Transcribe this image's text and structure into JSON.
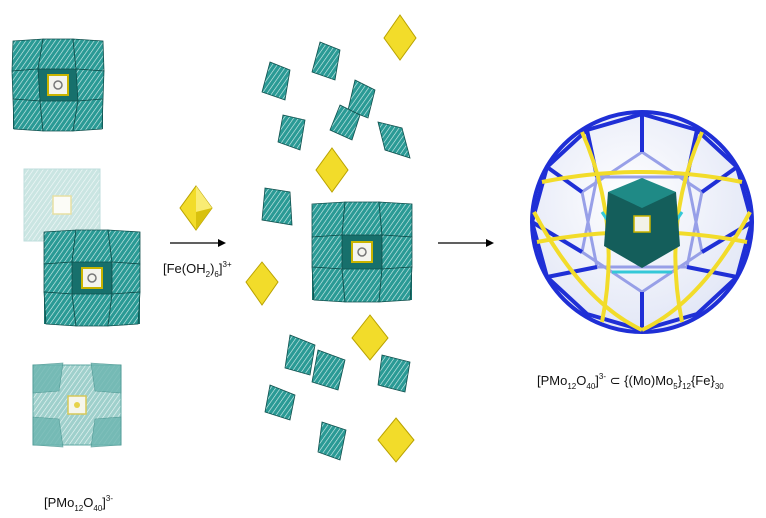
{
  "reagent_label": {
    "prefix": "[Fe(OH",
    "sub1": "2",
    "mid": ")",
    "sub2": "6",
    "close": "]",
    "charge": "3+"
  },
  "left_label": {
    "prefix": "[PMo",
    "sub1": "12",
    "mid": "O",
    "sub2": "40",
    "close": "]",
    "charge": "3-"
  },
  "product_label": {
    "prefix": "[PMo",
    "sub1": "12",
    "mid": "O",
    "sub2": "40",
    "close": "]",
    "charge": "3-",
    "subset": " ⊂ {(Mo)Mo",
    "sub3": "5",
    "close2": "}",
    "sub4": "12",
    "tail": "{Fe}",
    "sub5": "30"
  },
  "colors": {
    "teal": "#1f8a86",
    "teal_dark": "#145e5b",
    "teal_light": "#a9d3d0",
    "teal_mid": "#4aa7a3",
    "yellow": "#f2dc2a",
    "yellow_dark": "#c7b000",
    "blue": "#1f2fd6",
    "blue_light": "#8e97e6",
    "cyan": "#35c8d8",
    "vertex": "#e0607a"
  }
}
